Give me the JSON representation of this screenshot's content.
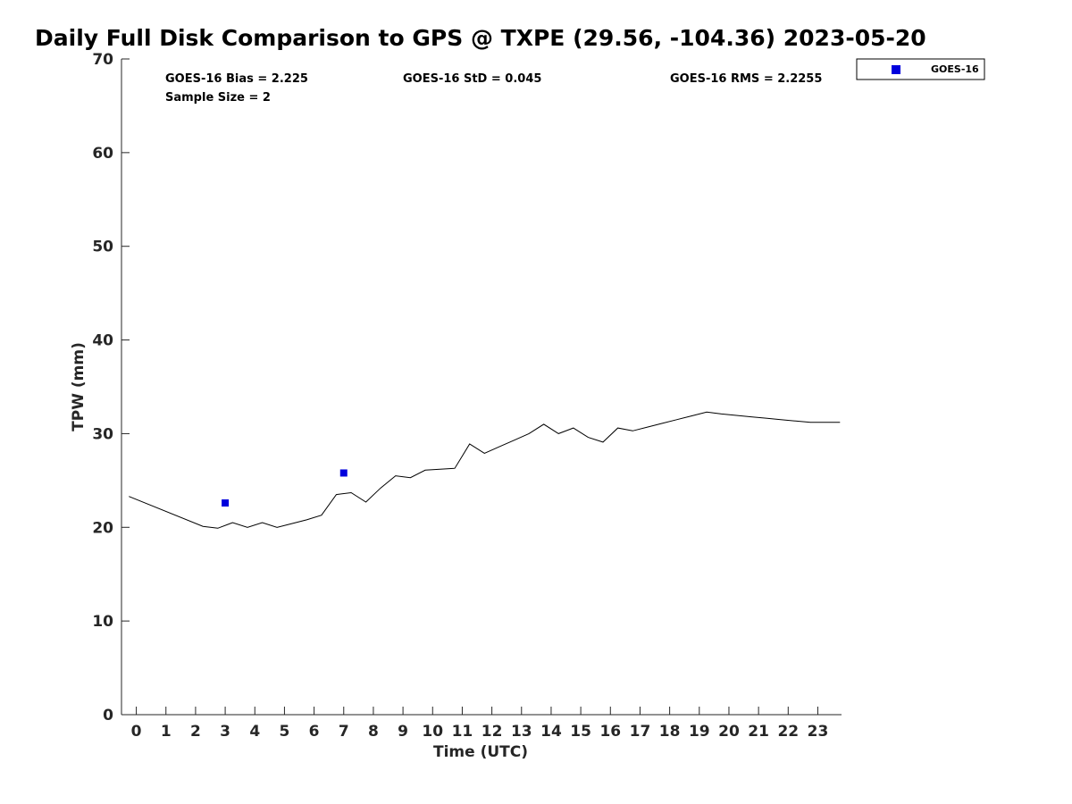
{
  "chart_data": {
    "type": "line",
    "title": "Daily Full Disk Comparison to GPS @ TXPE (29.56, -104.36) 2023-05-20",
    "xlabel": "Time (UTC)",
    "ylabel": "TPW (mm)",
    "xlim": [
      -0.5,
      23.8
    ],
    "ylim": [
      0,
      70
    ],
    "x_ticks": [
      0,
      1,
      2,
      3,
      4,
      5,
      6,
      7,
      8,
      9,
      10,
      11,
      12,
      13,
      14,
      15,
      16,
      17,
      18,
      19,
      20,
      21,
      22,
      23
    ],
    "x_tick_labels": [
      "0",
      "1",
      "2",
      "3",
      "4",
      "5",
      "6",
      "7",
      "8",
      "9",
      "10",
      "11",
      "12",
      "13",
      "14",
      "15",
      "16",
      "17",
      "18",
      "19",
      "20",
      "21",
      "22",
      "23"
    ],
    "y_ticks": [
      0,
      10,
      20,
      30,
      40,
      50,
      60,
      70
    ],
    "y_tick_labels": [
      "0",
      "10",
      "20",
      "30",
      "40",
      "50",
      "60",
      "70"
    ],
    "grid": false,
    "legend_position": "top-right, outside",
    "stats": {
      "bias": "GOES-16 Bias = 2.225",
      "std": "GOES-16 StD = 0.045",
      "rms": "GOES-16 RMS = 2.2255",
      "sample_size": "Sample Size = 2"
    },
    "legend": [
      {
        "label": "GOES-16",
        "color": "#0000dd",
        "marker": "square"
      }
    ],
    "series": [
      {
        "style": "line",
        "color": "#000000",
        "x": [
          -0.25,
          2.25,
          2.75,
          3.25,
          3.75,
          4.25,
          4.75,
          5.25,
          5.75,
          6.25,
          6.75,
          7.25,
          7.75,
          8.25,
          8.75,
          9.25,
          9.75,
          10.25,
          10.75,
          11.25,
          11.75,
          12.25,
          12.75,
          13.25,
          13.75,
          14.25,
          14.75,
          15.25,
          15.75,
          16.25,
          16.75,
          17.25,
          17.75,
          18.25,
          18.75,
          19.25,
          19.75,
          20.25,
          20.75,
          21.25,
          21.75,
          22.25,
          22.75,
          23.25,
          23.75
        ],
        "values": [
          23.3,
          20.1,
          19.9,
          20.5,
          20.0,
          20.5,
          20.0,
          20.4,
          20.8,
          21.3,
          23.5,
          23.7,
          22.7,
          24.2,
          25.5,
          25.3,
          26.1,
          26.2,
          26.3,
          28.9,
          27.9,
          28.6,
          29.3,
          30.0,
          31.0,
          30.0,
          30.6,
          29.6,
          29.1,
          30.6,
          30.3,
          30.7,
          31.1,
          31.5,
          31.9,
          32.3,
          32.1,
          31.95,
          31.8,
          31.65,
          31.5,
          31.35,
          31.2,
          31.2,
          31.2
        ]
      },
      {
        "name": "GOES-16",
        "style": "markers",
        "marker": "square",
        "color": "#0000dd",
        "x": [
          3.0,
          7.0
        ],
        "values": [
          22.6,
          25.8
        ]
      }
    ]
  }
}
